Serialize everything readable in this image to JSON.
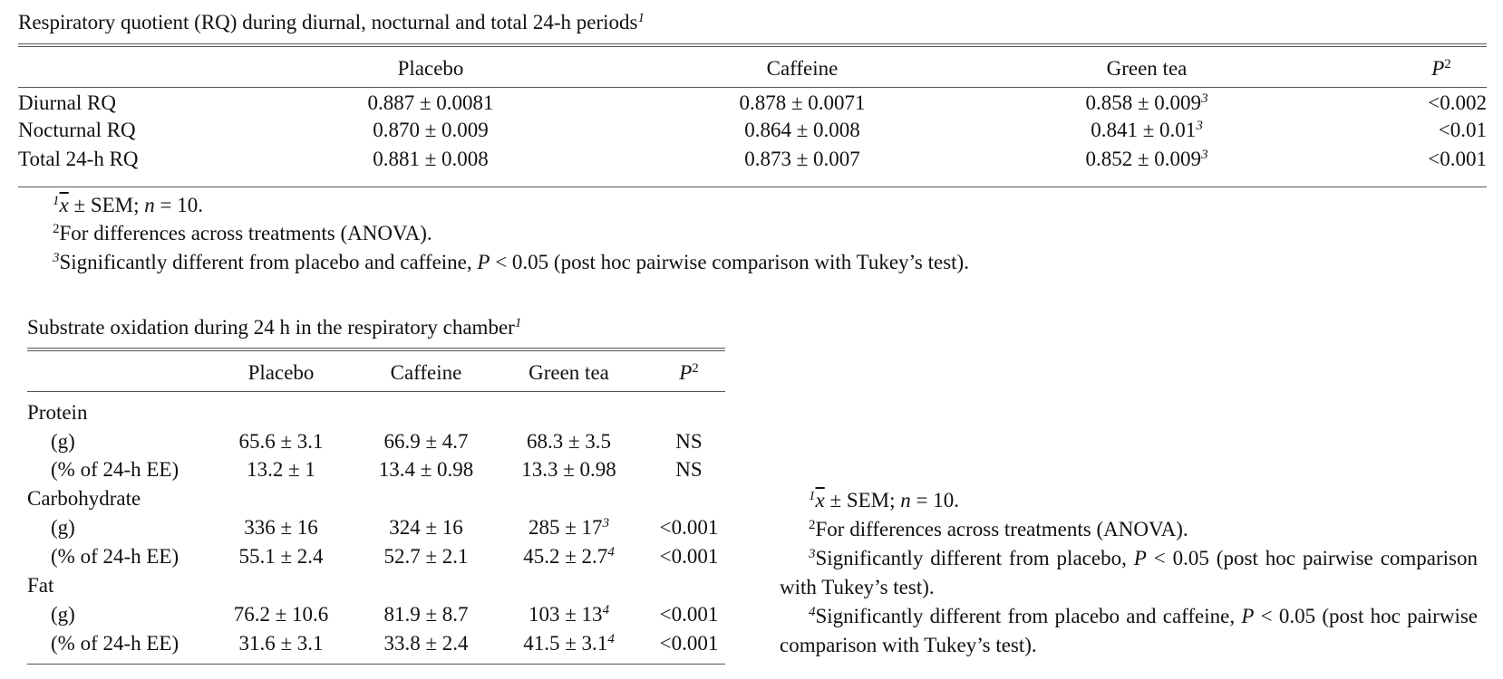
{
  "table1": {
    "caption": "Respiratory quotient (RQ) during diurnal, nocturnal and total 24-h periods",
    "caption_sup": "1",
    "headers": {
      "placebo": "Placebo",
      "caffeine": "Caffeine",
      "green_tea": "Green tea",
      "p": "P",
      "p_sup": "2"
    },
    "rows": [
      {
        "label": "Diurnal RQ",
        "placebo": "0.887 ± 0.0081",
        "caffeine": "0.878 ± 0.0071",
        "green_tea": "0.858 ± 0.009",
        "green_tea_sup": "3",
        "p": "<0.002"
      },
      {
        "label": "Nocturnal RQ",
        "placebo": "0.870 ± 0.009",
        "caffeine": "0.864 ± 0.008",
        "green_tea": "0.841 ± 0.01",
        "green_tea_sup": "3",
        "p": "<0.01"
      },
      {
        "label": "Total 24-h RQ",
        "placebo": "0.881 ± 0.008",
        "caffeine": "0.873 ± 0.007",
        "green_tea": "0.852 ± 0.009",
        "green_tea_sup": "3",
        "p": "<0.001"
      }
    ],
    "footnotes": {
      "f1_sup": "1",
      "f1_xbar": "x",
      "f1_pre": " ± SEM; ",
      "f1_n": "n",
      "f1_post": " = 10.",
      "f2_sup": "2",
      "f2_text": "For differences across treatments (ANOVA).",
      "f3_sup": "3",
      "f3_pre": "Significantly different from placebo and caffeine, ",
      "f3_p": "P",
      "f3_post": " < 0.05 (post hoc pairwise comparison with Tukey’s test)."
    }
  },
  "table2": {
    "caption": "Substrate oxidation during 24 h in the respiratory chamber",
    "caption_sup": "1",
    "headers": {
      "placebo": "Placebo",
      "caffeine": "Caffeine",
      "green_tea": "Green tea",
      "p": "P",
      "p_sup": "2"
    },
    "groups": [
      {
        "label": "Protein",
        "rows": [
          {
            "label": "(g)",
            "placebo": "65.6 ± 3.1",
            "caffeine": "66.9 ± 4.7",
            "green_tea": "68.3 ± 3.5",
            "green_tea_sup": "",
            "p": "NS"
          },
          {
            "label": "(% of 24-h EE)",
            "placebo": "13.2 ± 1",
            "caffeine": "13.4 ± 0.98",
            "green_tea": "13.3 ± 0.98",
            "green_tea_sup": "",
            "p": "NS"
          }
        ]
      },
      {
        "label": "Carbohydrate",
        "rows": [
          {
            "label": "(g)",
            "placebo": "336 ± 16",
            "caffeine": "324 ± 16",
            "green_tea": "285 ± 17",
            "green_tea_sup": "3",
            "p": "<0.001"
          },
          {
            "label": "(% of 24-h EE)",
            "placebo": "55.1 ± 2.4",
            "caffeine": "52.7 ± 2.1",
            "green_tea": "45.2 ± 2.7",
            "green_tea_sup": "4",
            "p": "<0.001"
          }
        ]
      },
      {
        "label": "Fat",
        "rows": [
          {
            "label": "(g)",
            "placebo": "76.2 ± 10.6",
            "caffeine": "81.9 ± 8.7",
            "green_tea": "103 ± 13",
            "green_tea_sup": "4",
            "p": "<0.001"
          },
          {
            "label": "(% of 24-h EE)",
            "placebo": "31.6 ± 3.1",
            "caffeine": "33.8 ± 2.4",
            "green_tea": "41.5 ± 3.1",
            "green_tea_sup": "4",
            "p": "<0.001"
          }
        ]
      }
    ],
    "footnotes": {
      "f1_sup": "1",
      "f1_xbar": "x",
      "f1_pre": " ± SEM; ",
      "f1_n": "n",
      "f1_post": " = 10.",
      "f2_sup": "2",
      "f2_text": "For differences across treatments (ANOVA).",
      "f3_sup": "3",
      "f3_pre": "Significantly different from placebo, ",
      "f3_p": "P",
      "f3_post": " < 0.05 (post hoc pairwise comparison with Tukey’s test).",
      "f4_sup": "4",
      "f4_pre": "Significantly different from placebo and caffeine, ",
      "f4_p": "P",
      "f4_post": " < 0.05 (post hoc pairwise comparison with Tukey’s test)."
    }
  }
}
